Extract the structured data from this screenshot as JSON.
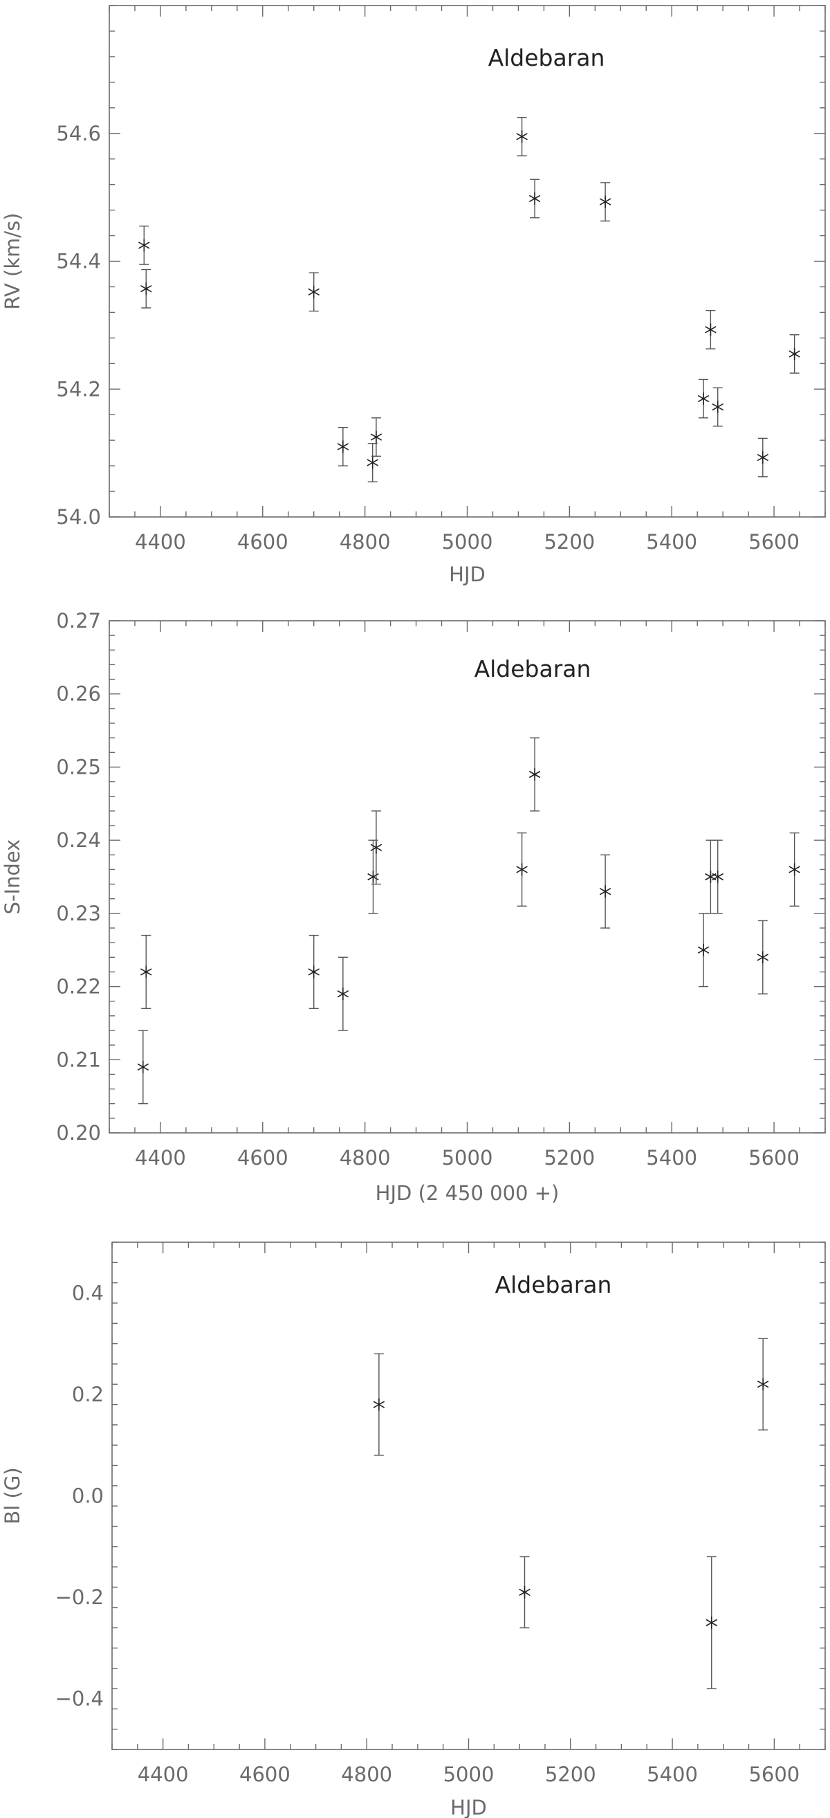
{
  "chart_data": [
    {
      "type": "scatter",
      "title": "Aldebaran",
      "xlabel": "HJD",
      "ylabel": "RV (km/s)",
      "xlim": [
        4300,
        5700
      ],
      "ylim": [
        54.0,
        54.8
      ],
      "xticks": [
        4400,
        4600,
        4800,
        5000,
        5200,
        5400,
        5600
      ],
      "xtick_labels": [
        "4400",
        "4600",
        "4800",
        "5000",
        "5200",
        "5400",
        "5600"
      ],
      "yticks": [
        54.0,
        54.2,
        54.4,
        54.6
      ],
      "ytick_labels": [
        "54.0",
        "54.2",
        "54.4",
        "54.6"
      ],
      "grid": false,
      "marker": "asterisk",
      "points": [
        {
          "x": 4368,
          "y": 54.425,
          "err": 0.03
        },
        {
          "x": 4372,
          "y": 54.357,
          "err": 0.03
        },
        {
          "x": 4700,
          "y": 54.352,
          "err": 0.03
        },
        {
          "x": 4757,
          "y": 54.11,
          "err": 0.03
        },
        {
          "x": 4815,
          "y": 54.085,
          "err": 0.03
        },
        {
          "x": 4822,
          "y": 54.125,
          "err": 0.03
        },
        {
          "x": 5107,
          "y": 54.595,
          "err": 0.03
        },
        {
          "x": 5132,
          "y": 54.498,
          "err": 0.03
        },
        {
          "x": 5270,
          "y": 54.493,
          "err": 0.03
        },
        {
          "x": 5462,
          "y": 54.185,
          "err": 0.03
        },
        {
          "x": 5476,
          "y": 54.293,
          "err": 0.03
        },
        {
          "x": 5490,
          "y": 54.172,
          "err": 0.03
        },
        {
          "x": 5578,
          "y": 54.093,
          "err": 0.03
        },
        {
          "x": 5640,
          "y": 54.255,
          "err": 0.03
        }
      ]
    },
    {
      "type": "scatter",
      "title": "Aldebaran",
      "xlabel": "HJD (2 450 000 +)",
      "ylabel": "S-Index",
      "xlim": [
        4300,
        5700
      ],
      "ylim": [
        0.2,
        0.27
      ],
      "xticks": [
        4400,
        4600,
        4800,
        5000,
        5200,
        5400,
        5600
      ],
      "xtick_labels": [
        "4400",
        "4600",
        "4800",
        "5000",
        "5200",
        "5400",
        "5600"
      ],
      "yticks": [
        0.2,
        0.21,
        0.22,
        0.23,
        0.24,
        0.25,
        0.26,
        0.27
      ],
      "ytick_labels": [
        "0.20",
        "0.21",
        "0.22",
        "0.23",
        "0.24",
        "0.25",
        "0.26",
        "0.27"
      ],
      "grid": false,
      "marker": "asterisk",
      "points": [
        {
          "x": 4366,
          "y": 0.209,
          "err": 0.005
        },
        {
          "x": 4372,
          "y": 0.222,
          "err": 0.005
        },
        {
          "x": 4700,
          "y": 0.222,
          "err": 0.005
        },
        {
          "x": 4757,
          "y": 0.219,
          "err": 0.005
        },
        {
          "x": 4816,
          "y": 0.235,
          "err": 0.005
        },
        {
          "x": 4822,
          "y": 0.239,
          "err": 0.005
        },
        {
          "x": 5107,
          "y": 0.236,
          "err": 0.005
        },
        {
          "x": 5132,
          "y": 0.249,
          "err": 0.005
        },
        {
          "x": 5270,
          "y": 0.233,
          "err": 0.005
        },
        {
          "x": 5462,
          "y": 0.225,
          "err": 0.005
        },
        {
          "x": 5476,
          "y": 0.235,
          "err": 0.005
        },
        {
          "x": 5490,
          "y": 0.235,
          "err": 0.005
        },
        {
          "x": 5578,
          "y": 0.224,
          "err": 0.005
        },
        {
          "x": 5640,
          "y": 0.236,
          "err": 0.005
        }
      ]
    },
    {
      "type": "scatter",
      "title": "Aldebaran",
      "xlabel": "HJD",
      "ylabel": "Bl (G)",
      "xlim": [
        4300,
        5700
      ],
      "ylim": [
        -0.5,
        0.5
      ],
      "xticks": [
        4400,
        4600,
        4800,
        5000,
        5200,
        5400,
        5600
      ],
      "xtick_labels": [
        "4400",
        "4600",
        "4800",
        "5000",
        "5200",
        "5400",
        "5600"
      ],
      "yticks": [
        -0.4,
        -0.2,
        0.0,
        0.2,
        0.4
      ],
      "ytick_labels": [
        "−0.4",
        "−0.2",
        "0.0",
        "0.2",
        "0.4"
      ],
      "grid": false,
      "marker": "asterisk",
      "points": [
        {
          "x": 4824,
          "y": 0.18,
          "err": 0.1
        },
        {
          "x": 5110,
          "y": -0.19,
          "err": 0.07
        },
        {
          "x": 5477,
          "y": -0.25,
          "err": 0.13
        },
        {
          "x": 5578,
          "y": 0.22,
          "err": 0.09
        }
      ]
    }
  ]
}
